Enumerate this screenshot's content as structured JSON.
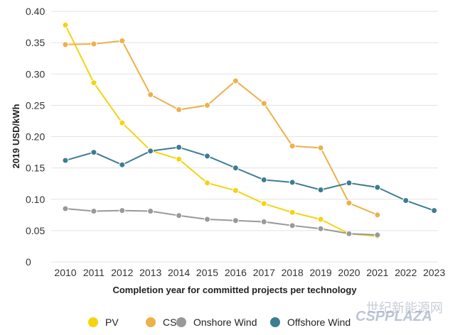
{
  "chart_data": {
    "type": "line",
    "title": "",
    "xlabel": "Completion year for committed projects per technology",
    "ylabel": "2019 USD/kWh",
    "ylim": [
      0,
      0.4
    ],
    "yticks": [
      "0",
      "0.05",
      "0.10",
      "0.15",
      "0.20",
      "0.25",
      "0.30",
      "0.35",
      "0.40"
    ],
    "x": [
      "2010",
      "2011",
      "2012",
      "2013",
      "2014",
      "2015",
      "2016",
      "2017",
      "2018",
      "2019",
      "2020",
      "2021",
      "2022",
      "2023"
    ],
    "grid": true,
    "legend_position": "bottom",
    "series": [
      {
        "name": "PV",
        "color": "#f5d312",
        "values": [
          0.378,
          0.286,
          0.222,
          0.178,
          0.164,
          0.126,
          0.114,
          0.093,
          0.079,
          0.068,
          0.045,
          0.041,
          null,
          null
        ]
      },
      {
        "name": "CSP",
        "color": "#eeb04a",
        "values": [
          0.347,
          0.348,
          0.353,
          0.267,
          0.243,
          0.25,
          0.289,
          0.253,
          0.185,
          0.182,
          0.094,
          0.075,
          null,
          null
        ]
      },
      {
        "name": "Onshore Wind",
        "color": "#999999",
        "values": [
          0.085,
          0.081,
          0.082,
          0.081,
          0.074,
          0.068,
          0.066,
          0.064,
          0.058,
          0.053,
          0.045,
          0.043,
          null,
          null
        ]
      },
      {
        "name": "Offshore Wind",
        "color": "#3c7d92",
        "values": [
          0.162,
          0.175,
          0.155,
          0.177,
          0.183,
          0.169,
          0.15,
          0.131,
          0.127,
          0.115,
          0.126,
          0.119,
          0.098,
          0.082
        ]
      }
    ]
  },
  "watermark": {
    "cn": "世纪新能源网",
    "en": "CSPPLAZA"
  }
}
